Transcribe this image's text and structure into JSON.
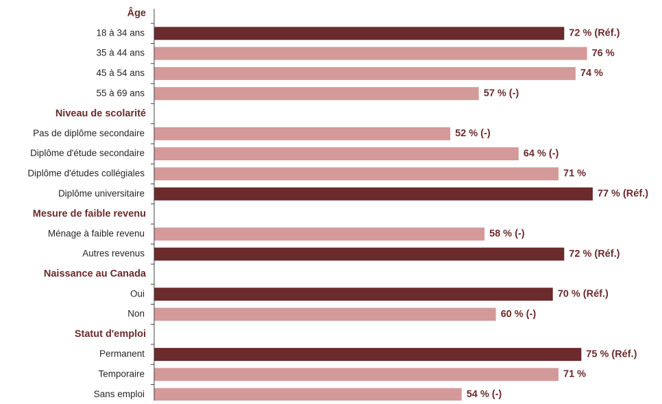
{
  "colors": {
    "reference_bar": "#6b2a2b",
    "other_bar": "#d49a9a",
    "group_label": "#6b2a2b",
    "value_label": "#6b2a2b",
    "category_label": "#262626",
    "axis_line": "#404040"
  },
  "chart_data": {
    "type": "bar",
    "orientation": "horizontal",
    "xlim": [
      0,
      80
    ],
    "grid": false,
    "legend": "none",
    "groups": [
      {
        "label": "Âge",
        "items": [
          {
            "category": "18 à 34 ans",
            "value": 72,
            "label": "72 % (Réf.)",
            "reference": true
          },
          {
            "category": "35 à 44 ans",
            "value": 76,
            "label": "76 %",
            "reference": false
          },
          {
            "category": "45 à 54 ans",
            "value": 74,
            "label": "74 %",
            "reference": false
          },
          {
            "category": "55 à 69 ans",
            "value": 57,
            "label": "57 % (-)",
            "reference": false
          }
        ]
      },
      {
        "label": "Niveau de scolarité",
        "items": [
          {
            "category": "Pas de diplôme secondaire",
            "value": 52,
            "label": "52 % (-)",
            "reference": false
          },
          {
            "category": "Diplôme d'étude secondaire",
            "value": 64,
            "label": "64 % (-)",
            "reference": false
          },
          {
            "category": "Diplôme d'études collégiales",
            "value": 71,
            "label": "71 %",
            "reference": false
          },
          {
            "category": "Diplôme universitaire",
            "value": 77,
            "label": "77 % (Réf.)",
            "reference": true
          }
        ]
      },
      {
        "label": "Mesure de faible revenu",
        "items": [
          {
            "category": "Ménage à faible revenu",
            "value": 58,
            "label": "58 % (-)",
            "reference": false
          },
          {
            "category": "Autres revenus",
            "value": 72,
            "label": "72 % (Réf.)",
            "reference": true
          }
        ]
      },
      {
        "label": "Naissance au Canada",
        "items": [
          {
            "category": "Oui",
            "value": 70,
            "label": "70 % (Réf.)",
            "reference": true
          },
          {
            "category": "Non",
            "value": 60,
            "label": "60 % (-)",
            "reference": false
          }
        ]
      },
      {
        "label": "Statut d'emploi",
        "items": [
          {
            "category": "Permanent",
            "value": 75,
            "label": "75 % (Réf.)",
            "reference": true
          },
          {
            "category": "Temporaire",
            "value": 71,
            "label": "71 %",
            "reference": false
          },
          {
            "category": "Sans emploi",
            "value": 54,
            "label": "54 % (-)",
            "reference": false
          }
        ]
      }
    ]
  }
}
